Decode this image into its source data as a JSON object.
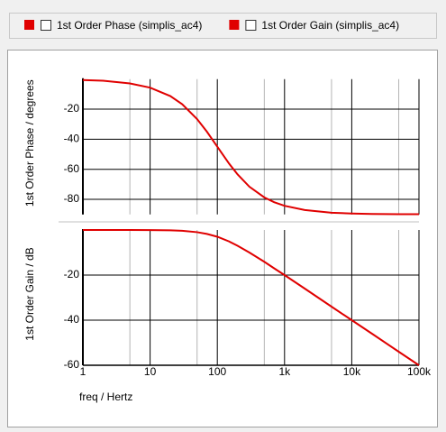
{
  "chart_data": [
    {
      "type": "line",
      "y_label": "1st Order Phase / degrees",
      "log_x": true,
      "grid": true,
      "x": [
        1,
        2,
        5,
        10,
        20,
        30,
        50,
        70,
        100,
        150,
        200,
        300,
        500,
        700,
        1000,
        2000,
        5000,
        10000,
        20000,
        50000,
        100000
      ],
      "series": [
        {
          "name": "1st Order Phase (simplis_ac4)",
          "color": "#e00000",
          "values": [
            -0.6,
            -1.1,
            -2.9,
            -5.7,
            -11.3,
            -16.7,
            -26.6,
            -35,
            -45,
            -56.3,
            -63.4,
            -71.6,
            -78.7,
            -81.9,
            -84.3,
            -87.1,
            -88.9,
            -89.4,
            -89.7,
            -89.9,
            -89.9
          ]
        }
      ],
      "xlim": [
        1,
        100000
      ],
      "xticks": [
        1,
        10,
        100,
        1000,
        10000,
        100000
      ],
      "xticks_minor": [
        5,
        50,
        500,
        5000,
        50000
      ],
      "ylim": [
        -90,
        0
      ],
      "yticks": [
        -20,
        -40,
        -60,
        -80
      ]
    },
    {
      "type": "line",
      "x_label": "freq / Hertz",
      "y_label": "1st Order Gain / dB",
      "log_x": true,
      "grid": true,
      "x": [
        1,
        2,
        5,
        10,
        20,
        30,
        50,
        70,
        100,
        150,
        200,
        300,
        500,
        700,
        1000,
        2000,
        5000,
        10000,
        20000,
        50000,
        100000
      ],
      "series": [
        {
          "name": "1st Order Gain (simplis_ac4)",
          "color": "#e00000",
          "values": [
            0,
            0,
            0,
            -0.04,
            -0.17,
            -0.37,
            -0.97,
            -1.74,
            -3,
            -5.1,
            -7,
            -10,
            -14.1,
            -17,
            -20,
            -26,
            -34,
            -40,
            -46,
            -54,
            -60
          ]
        }
      ],
      "xlim": [
        1,
        100000
      ],
      "xticks": [
        1,
        10,
        100,
        {
          "value": 1000,
          "label": "1k"
        },
        {
          "value": 10000,
          "label": "10k"
        },
        {
          "value": 100000,
          "label": "100k"
        }
      ],
      "xticks_minor": [
        5,
        50,
        500,
        5000,
        50000
      ],
      "ylim": [
        -60,
        0
      ],
      "yticks": [
        -20,
        -40,
        -60
      ]
    }
  ]
}
